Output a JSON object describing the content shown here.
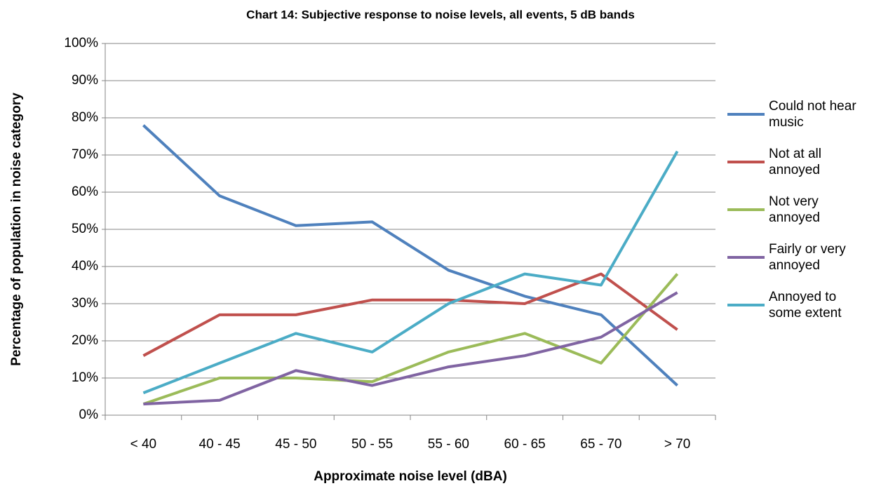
{
  "chart_data": {
    "type": "line",
    "title": "Chart 14: Subjective response to noise levels, all events, 5 dB bands",
    "x_label": "Approximate noise level (dBA)",
    "y_label": "Percentage of population in noise category",
    "categories": [
      "< 40",
      "40 - 45",
      "45 - 50",
      "50 - 55",
      "55 - 60",
      "60 - 65",
      "65 - 70",
      "> 70"
    ],
    "series": [
      {
        "name": "Could not hear music",
        "color": "#4f81bd",
        "values": [
          78,
          59,
          51,
          52,
          39,
          32,
          27,
          8
        ]
      },
      {
        "name": "Not at all annoyed",
        "color": "#c0504d",
        "values": [
          16,
          27,
          27,
          31,
          31,
          30,
          38,
          23
        ]
      },
      {
        "name": "Not very annoyed",
        "color": "#9bbb59",
        "values": [
          3,
          10,
          10,
          9,
          17,
          22,
          14,
          38
        ]
      },
      {
        "name": "Fairly or very annoyed",
        "color": "#8064a2",
        "values": [
          3,
          4,
          12,
          8,
          13,
          16,
          21,
          33
        ]
      },
      {
        "name": "Annoyed to some extent",
        "color": "#4bacc6",
        "values": [
          6,
          14,
          22,
          17,
          30,
          38,
          35,
          71
        ]
      }
    ],
    "ylim": [
      0,
      100
    ],
    "yticks": [
      {
        "value": 0,
        "label": "0%"
      },
      {
        "value": 10,
        "label": "10%"
      },
      {
        "value": 20,
        "label": "20%"
      },
      {
        "value": 30,
        "label": "30%"
      },
      {
        "value": 40,
        "label": "40%"
      },
      {
        "value": 50,
        "label": "50%"
      },
      {
        "value": 60,
        "label": "60%"
      },
      {
        "value": 70,
        "label": "70%"
      },
      {
        "value": 80,
        "label": "80%"
      },
      {
        "value": 90,
        "label": "90%"
      },
      {
        "value": 100,
        "label": "100%"
      }
    ],
    "grid": true,
    "legend": "right"
  }
}
